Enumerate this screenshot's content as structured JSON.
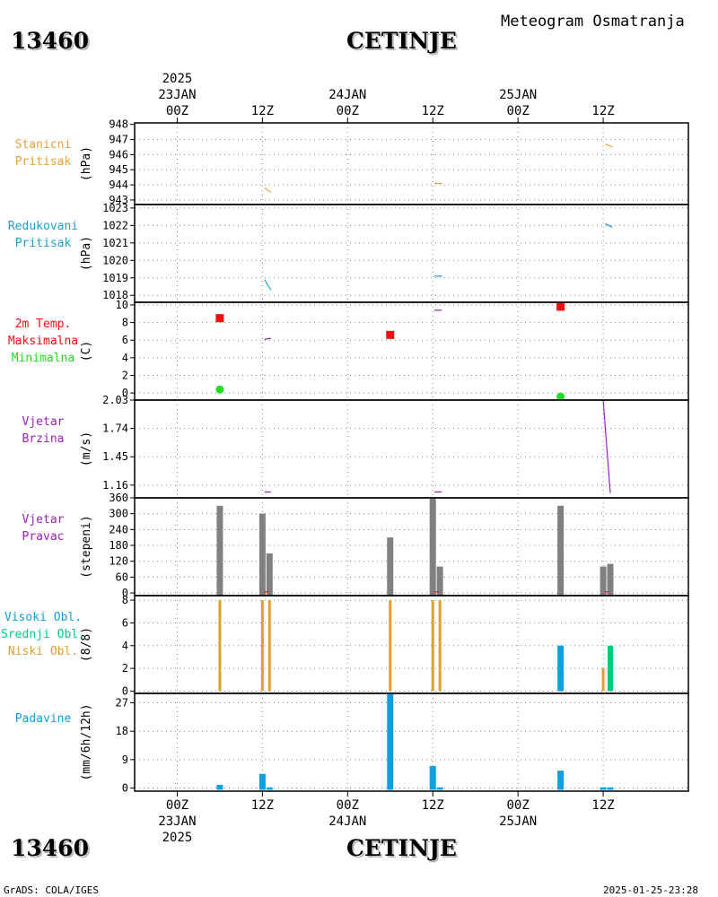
{
  "header": {
    "station_id": "13460",
    "station_name": "CETINJE",
    "product_title": "Meteogram Osmatranja"
  },
  "footer": {
    "grads_label": "GrADS: COLA/IGES",
    "timestamp": "2025-01-25-23:28"
  },
  "time_axis": {
    "year": "2025",
    "day_labels": [
      "23JAN",
      "24JAN",
      "25JAN"
    ],
    "tick_labels": [
      "00Z",
      "12Z",
      "00Z",
      "12Z",
      "00Z",
      "12Z"
    ],
    "tick_hours": [
      0,
      12,
      24,
      36,
      48,
      60
    ],
    "range_hours": [
      -6,
      72
    ]
  },
  "colors": {
    "pressure": "#e8a040",
    "reduced_pressure": "#20a0d0",
    "tmax": "#ee1010",
    "tmin": "#22dd22",
    "wind": "#a020c0",
    "direction": "#808080",
    "low_cloud": "#e0a030",
    "mid_cloud": "#00cc80",
    "high_cloud": "#10a0e0",
    "precip": "#10a0e0"
  },
  "chart_data": [
    {
      "type": "line",
      "panel": "station_pressure",
      "label_lines": [
        "Stanicni",
        "Pritisak"
      ],
      "unit": "(hPa)",
      "ylim": [
        942.7,
        948.1
      ],
      "yticks": [
        943,
        944,
        945,
        946,
        947,
        948
      ],
      "series": [
        {
          "x": [
            12.3,
            13.2
          ],
          "y": [
            943.8,
            943.5
          ]
        },
        {
          "x": [
            36.2,
            37.3
          ],
          "y": [
            944.1,
            944.1
          ]
        },
        {
          "x": [
            60.3,
            61.3
          ],
          "y": [
            946.7,
            946.5
          ]
        }
      ]
    },
    {
      "type": "line",
      "panel": "reduced_pressure",
      "label_lines": [
        "Redukovani",
        "Pritisak"
      ],
      "unit": "(hPa)",
      "ylim": [
        1017.6,
        1023.2
      ],
      "yticks": [
        1018,
        1019,
        1020,
        1021,
        1022,
        1023
      ],
      "series": [
        {
          "x": [
            12.3,
            13.2
          ],
          "y": [
            1018.9,
            1018.3
          ]
        },
        {
          "x": [
            36.2,
            37.3
          ],
          "y": [
            1019.1,
            1019.1
          ]
        },
        {
          "x": [
            60.3,
            61.3
          ],
          "y": [
            1022.1,
            1021.9
          ]
        }
      ]
    },
    {
      "type": "scatter",
      "panel": "temperature",
      "label_lines": [
        "2m Temp.",
        "Maksimalna",
        "Minimalna"
      ],
      "unit": "(C)",
      "ylim": [
        -0.8,
        10.3
      ],
      "yticks": [
        0,
        2,
        4,
        6,
        8,
        10
      ],
      "tmax": {
        "x": [
          6,
          30,
          54
        ],
        "y": [
          8.5,
          6.6,
          9.8
        ]
      },
      "tmin": {
        "x": [
          6,
          54
        ],
        "y": [
          0.4,
          -0.4
        ]
      },
      "temp_lines": [
        {
          "x": [
            12.3,
            13.2
          ],
          "y": [
            6.1,
            6.2
          ]
        },
        {
          "x": [
            36.2,
            37.3
          ],
          "y": [
            9.4,
            9.4
          ]
        }
      ]
    },
    {
      "type": "line",
      "panel": "wind_speed",
      "label_lines": [
        "Vjetar",
        "Brzina"
      ],
      "unit": "(m/s)",
      "ylim": [
        1.03,
        2.03
      ],
      "yticks": [
        1.16,
        1.45,
        1.74,
        2.03
      ],
      "series": [
        {
          "x": [
            12.3,
            13.2
          ],
          "y": [
            1.09,
            1.09
          ]
        },
        {
          "x": [
            36.2,
            37.3
          ],
          "y": [
            1.09,
            1.09
          ]
        },
        {
          "x": [
            60.0,
            61.0
          ],
          "y": [
            2.03,
            1.08
          ]
        }
      ]
    },
    {
      "type": "bar",
      "panel": "wind_direction",
      "label_lines": [
        "Vjetar",
        "Pravac"
      ],
      "unit": "(stepeni)",
      "ylim": [
        -10,
        360
      ],
      "yticks": [
        0,
        60,
        120,
        180,
        240,
        300,
        360
      ],
      "x": [
        6,
        12,
        13,
        30,
        36,
        37,
        54,
        60,
        61
      ],
      "values": [
        330,
        300,
        150,
        210,
        360,
        100,
        330,
        100,
        110
      ]
    },
    {
      "type": "bar",
      "panel": "clouds",
      "label_lines": [
        "Visoki Obl.",
        "Srednji Obl.",
        "Niski Obl."
      ],
      "unit": "(8/8)",
      "ylim": [
        -0.2,
        8.4
      ],
      "yticks": [
        0,
        2,
        4,
        6,
        8
      ],
      "low": {
        "x": [
          6,
          12,
          13,
          30,
          36,
          37,
          60
        ],
        "values": [
          8,
          8,
          8,
          8,
          8,
          8,
          2
        ]
      },
      "mid": {
        "x": [
          61
        ],
        "values": [
          4
        ]
      },
      "high": {
        "x": [
          54
        ],
        "values": [
          4
        ]
      }
    },
    {
      "type": "bar",
      "panel": "precipitation",
      "label_lines": [
        "Padavine"
      ],
      "unit": "(mm/6h/12h)",
      "ylim": [
        -1,
        30
      ],
      "yticks": [
        0,
        9,
        18,
        27
      ],
      "x": [
        6,
        12,
        13,
        30,
        36,
        37,
        54,
        60,
        61
      ],
      "values": [
        1,
        4.5,
        0.2,
        30,
        7,
        0.2,
        5.5,
        0.2,
        0.2
      ]
    }
  ]
}
